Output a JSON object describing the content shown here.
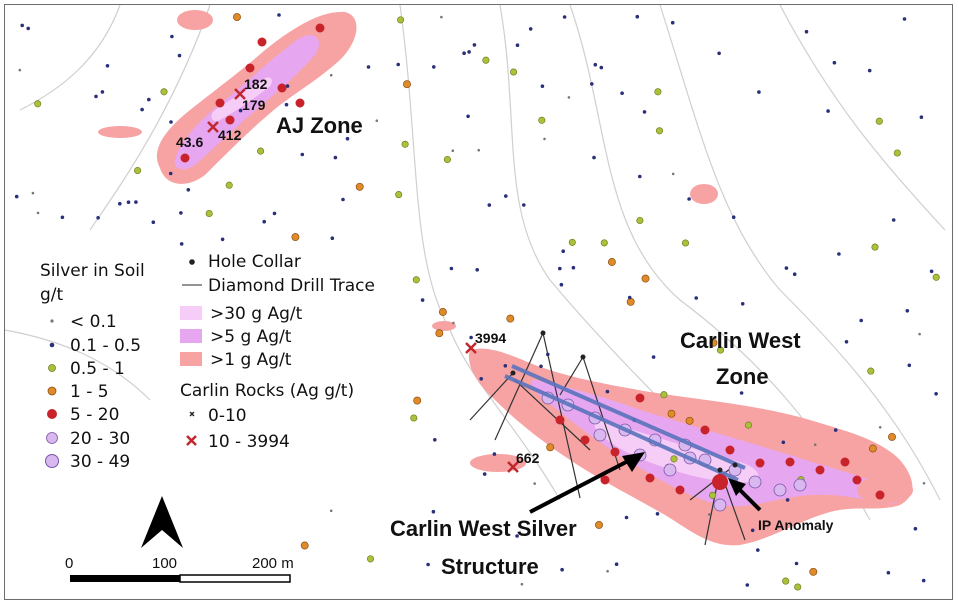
{
  "labels": {
    "aj_zone": "AJ Zone",
    "carlin_west_zone_1": "Carlin West",
    "carlin_west_zone_2": "Zone",
    "structure_1": "Carlin West Silver",
    "structure_2": "Structure",
    "ip_anomaly": "IP Anomaly"
  },
  "sample_values": {
    "v182": "182",
    "v179": "179",
    "v43_6": "43.6",
    "v412": "412",
    "v3994": "3994",
    "v662": "662"
  },
  "legend": {
    "title_1": "Silver in Soil",
    "title_2": "g/t",
    "soil_classes": [
      "< 0.1",
      "0.1 - 0.5",
      "0.5 - 1",
      "1 - 5",
      "5 - 20",
      "20 - 30",
      "30 - 49"
    ],
    "hole_collar": "Hole Collar",
    "drill_trace": "Diamond Drill Trace",
    "polygons": [
      ">30 g Ag/t",
      ">5 g Ag/t",
      ">1 g Ag/t"
    ],
    "rocks_title": "Carlin Rocks (Ag g/t)",
    "rocks": [
      "0-10",
      "10 - 3994"
    ]
  },
  "scale": {
    "ticks": [
      "0",
      "100",
      "200 m"
    ]
  },
  "colors": {
    "anomaly_1": "#f7a3a3",
    "anomaly_5": "#e7a6f0",
    "anomaly_30": "#f6cdf7",
    "soil_lt01": "#777777",
    "soil_01_05": "#2a2f7a",
    "soil_05_1": "#a9c23a",
    "soil_1_5": "#e08a2a",
    "soil_5_20": "#c8232a",
    "soil_20_30": "#d8b8ef",
    "soil_30_49": "#b27fe0",
    "rock_high": "#c0282d",
    "drill": "#4a6ab5"
  }
}
